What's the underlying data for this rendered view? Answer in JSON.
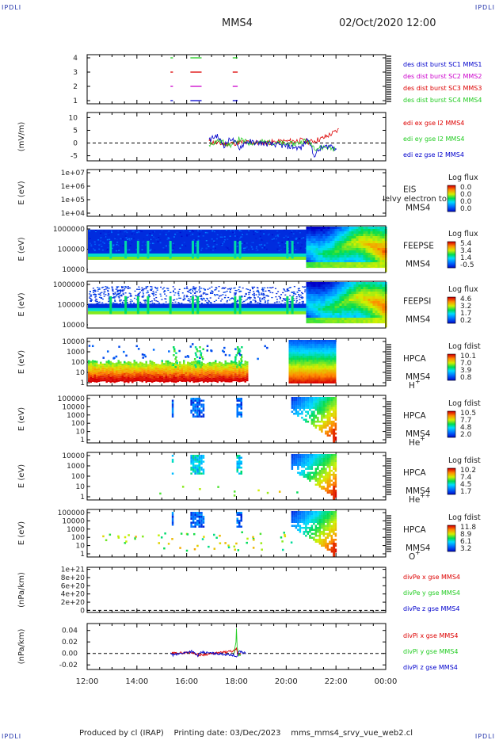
{
  "header": {
    "corner_tl": "IPDLI",
    "corner_tr": "IPDLI",
    "corner_bl": "IPDLI",
    "corner_br": "IPDLI",
    "satellite": "MMS4",
    "datetime": "02/Oct/2020 12:00"
  },
  "footer": "Produced by cl (IRAP)    Printing date: 03/Dec/2023    mms_mms4_srvy_vue_web2.cl",
  "colors": {
    "red": "#dd0000",
    "green": "#22cc22",
    "blue": "#0000cc",
    "magenta": "#cc00cc"
  },
  "chart_data": [
    {
      "type": "line",
      "id": "burst",
      "ylim": [
        0.5,
        4.5
      ],
      "yticks": [
        "1",
        "2",
        "3",
        "4"
      ],
      "legend": [
        "des dist burst SC1 MMS1",
        "des dist burst SC2 MMS2",
        "des dist burst SC3 MMS3",
        "des dist burst SC4 MMS4"
      ],
      "series": [
        {
          "level": 4,
          "color": "green",
          "intervals": [
            [
              15.35,
              15.45
            ],
            [
              16.15,
              16.6
            ],
            [
              17.85,
              18.05
            ]
          ]
        },
        {
          "level": 3,
          "color": "red",
          "intervals": [
            [
              15.35,
              15.45
            ],
            [
              16.15,
              16.6
            ],
            [
              17.85,
              18.05
            ]
          ]
        },
        {
          "level": 2,
          "color": "magenta",
          "intervals": [
            [
              15.35,
              15.45
            ],
            [
              16.15,
              16.6
            ],
            [
              17.85,
              18.05
            ]
          ]
        },
        {
          "level": 1,
          "color": "blue",
          "intervals": [
            [
              15.35,
              15.45
            ],
            [
              16.15,
              16.6
            ],
            [
              17.85,
              18.05
            ]
          ]
        }
      ]
    },
    {
      "type": "line",
      "id": "edi",
      "ylabel": "(mV/m)",
      "ylim": [
        -7,
        12
      ],
      "yticks": [
        "10",
        "5",
        "0",
        "-5"
      ],
      "legend": [
        "edi ex gse l2 MMS4",
        "edi ey gse l2 MMS4",
        "edi ez gse l2 MMS4"
      ],
      "series": [
        {
          "name": "edi ex gse l2 MMS4",
          "color": "red",
          "points": [
            [
              16.9,
              0.5
            ],
            [
              17.5,
              -0.5
            ],
            [
              18.2,
              0.3
            ],
            [
              19.0,
              0.1
            ],
            [
              20.6,
              1.0
            ],
            [
              21.0,
              0.5
            ],
            [
              21.5,
              2.0
            ],
            [
              21.8,
              3.5
            ],
            [
              22.0,
              4.5
            ],
            [
              22.15,
              5.5
            ]
          ]
        },
        {
          "name": "edi ey gse l2 MMS4",
          "color": "green",
          "points": [
            [
              16.9,
              -0.5
            ],
            [
              17.3,
              1.0
            ],
            [
              17.8,
              -1.0
            ],
            [
              18.1,
              1.5
            ],
            [
              18.5,
              0.0
            ],
            [
              19.0,
              0.5
            ],
            [
              20.3,
              -0.5
            ],
            [
              20.8,
              1.0
            ],
            [
              21.2,
              -2.0
            ],
            [
              21.6,
              -1.5
            ],
            [
              22.0,
              -2.5
            ]
          ]
        },
        {
          "name": "edi ez gse l2 MMS4",
          "color": "blue",
          "points": [
            [
              16.9,
              1.0
            ],
            [
              17.2,
              3.0
            ],
            [
              17.5,
              -1.0
            ],
            [
              17.8,
              2.0
            ],
            [
              18.1,
              -2.0
            ],
            [
              18.4,
              0.5
            ],
            [
              19.0,
              0.0
            ],
            [
              20.6,
              -2.0
            ],
            [
              20.9,
              2.0
            ],
            [
              21.1,
              -5.0
            ],
            [
              21.4,
              -2.0
            ],
            [
              21.8,
              -1.0
            ],
            [
              22.05,
              -2.5
            ]
          ]
        }
      ],
      "dashed_zero": true
    },
    {
      "type": "heatmap",
      "id": "eis",
      "ylabel": "E (eV)",
      "yticks": [
        "1e+07",
        "1e+06",
        "1e+05",
        "1e+04"
      ],
      "instrument": "EIS",
      "subtitle": "Ielvy electron to",
      "sc": "MMS4",
      "cbar_title": "Log flux",
      "cbar_ticks": [
        "0.0",
        "0.0",
        "0.0",
        "0.0"
      ]
    },
    {
      "type": "heatmap",
      "id": "feepse",
      "ylabel": "E (eV)",
      "yticks": [
        "1000000",
        "100000",
        "10000"
      ],
      "instrument": "FEEPSE",
      "sc": "MMS4",
      "cbar_title": "Log flux",
      "cbar_ticks": [
        "5.4",
        "3.4",
        "1.4",
        "-0.5"
      ]
    },
    {
      "type": "heatmap",
      "id": "feepsi",
      "ylabel": "E (eV)",
      "yticks": [
        "1000000",
        "100000",
        "10000"
      ],
      "instrument": "FEEPSI",
      "sc": "MMS4",
      "cbar_title": "Log flux",
      "cbar_ticks": [
        "4.6",
        "3.2",
        "1.7",
        "0.2"
      ]
    },
    {
      "type": "heatmap",
      "id": "hpca-h",
      "ylabel": "E (eV)",
      "yticks": [
        "10000",
        "1000",
        "100",
        "10",
        "1"
      ],
      "instrument": "HPCA",
      "sc": "MMS4",
      "species": "H",
      "charge": "+",
      "cbar_title": "Log fdist",
      "cbar_ticks": [
        "10.1",
        "7.0",
        "3.9",
        "0.8"
      ]
    },
    {
      "type": "heatmap",
      "id": "hpca-he",
      "ylabel": "E (eV)",
      "yticks": [
        "100000",
        "10000",
        "1000",
        "100",
        "10",
        "1"
      ],
      "instrument": "HPCA",
      "sc": "MMS4",
      "species": "He",
      "charge": "+",
      "cbar_title": "Log fdist",
      "cbar_ticks": [
        "10.5",
        "7.7",
        "4.8",
        "2.0"
      ]
    },
    {
      "type": "heatmap",
      "id": "hpca-hepp",
      "ylabel": "E (eV)",
      "yticks": [
        "10000",
        "1000",
        "100",
        "10",
        "1"
      ],
      "instrument": "HPCA",
      "sc": "MMS4",
      "species": "He",
      "charge": "++",
      "cbar_title": "Log fdist",
      "cbar_ticks": [
        "10.2",
        "7.4",
        "4.5",
        "1.7"
      ]
    },
    {
      "type": "heatmap",
      "id": "hpca-o",
      "ylabel": "E (eV)",
      "yticks": [
        "100000",
        "10000",
        "1000",
        "100",
        "10",
        "1"
      ],
      "instrument": "HPCA",
      "sc": "MMS4",
      "species": "O",
      "charge": "+",
      "cbar_title": "Log fdist",
      "cbar_ticks": [
        "11.8",
        "8.9",
        "6.1",
        "3.2"
      ]
    },
    {
      "type": "line",
      "id": "divpe",
      "ylabel": "(nPa/km)",
      "ylim": [
        -5e+19,
        1.05e+21
      ],
      "yticks": [
        "1e+21",
        "8e+20",
        "6e+20",
        "4e+20",
        "2e+20",
        "0"
      ],
      "legend": [
        "divPe x gse MMS4",
        "divPe y gse MMS4",
        "divPe z gse MMS4"
      ],
      "series": [],
      "dashed_zero": true
    },
    {
      "type": "line",
      "id": "divpi",
      "ylabel": "(nPa/km)",
      "ylim": [
        -0.028,
        0.052
      ],
      "yticks": [
        "0.04",
        "0.02",
        "0.00",
        "-0.02"
      ],
      "legend": [
        "divPi x gse MMS4",
        "divPi y gse MMS4",
        "divPi z gse MMS4"
      ],
      "series": [
        {
          "name": "divPi x gse MMS4",
          "color": "red",
          "points": [
            [
              15.4,
              0.0
            ],
            [
              16.2,
              0.002
            ],
            [
              16.5,
              -0.003
            ],
            [
              17.9,
              0.004
            ],
            [
              18.0,
              0.008
            ],
            [
              18.05,
              -0.004
            ],
            [
              18.2,
              0.0
            ]
          ]
        },
        {
          "name": "divPi y gse MMS4",
          "color": "green",
          "points": [
            [
              17.9,
              0.0
            ],
            [
              17.98,
              0.02
            ],
            [
              18.0,
              0.045
            ],
            [
              18.03,
              0.01
            ],
            [
              18.1,
              -0.005
            ],
            [
              18.2,
              0.0
            ]
          ]
        },
        {
          "name": "divPi z gse MMS4",
          "color": "blue",
          "points": [
            [
              15.35,
              0.0
            ],
            [
              15.45,
              -0.003
            ],
            [
              16.2,
              0.004
            ],
            [
              16.45,
              -0.004
            ],
            [
              16.6,
              0.002
            ],
            [
              17.9,
              -0.003
            ],
            [
              18.0,
              -0.008
            ],
            [
              18.1,
              0.004
            ],
            [
              18.4,
              0.0
            ]
          ]
        }
      ],
      "dashed_zero": true
    }
  ],
  "xaxis": {
    "range": [
      12,
      24
    ],
    "ticks": [
      "12:00",
      "14:00",
      "16:00",
      "18:00",
      "20:00",
      "22:00",
      "00:00"
    ]
  }
}
